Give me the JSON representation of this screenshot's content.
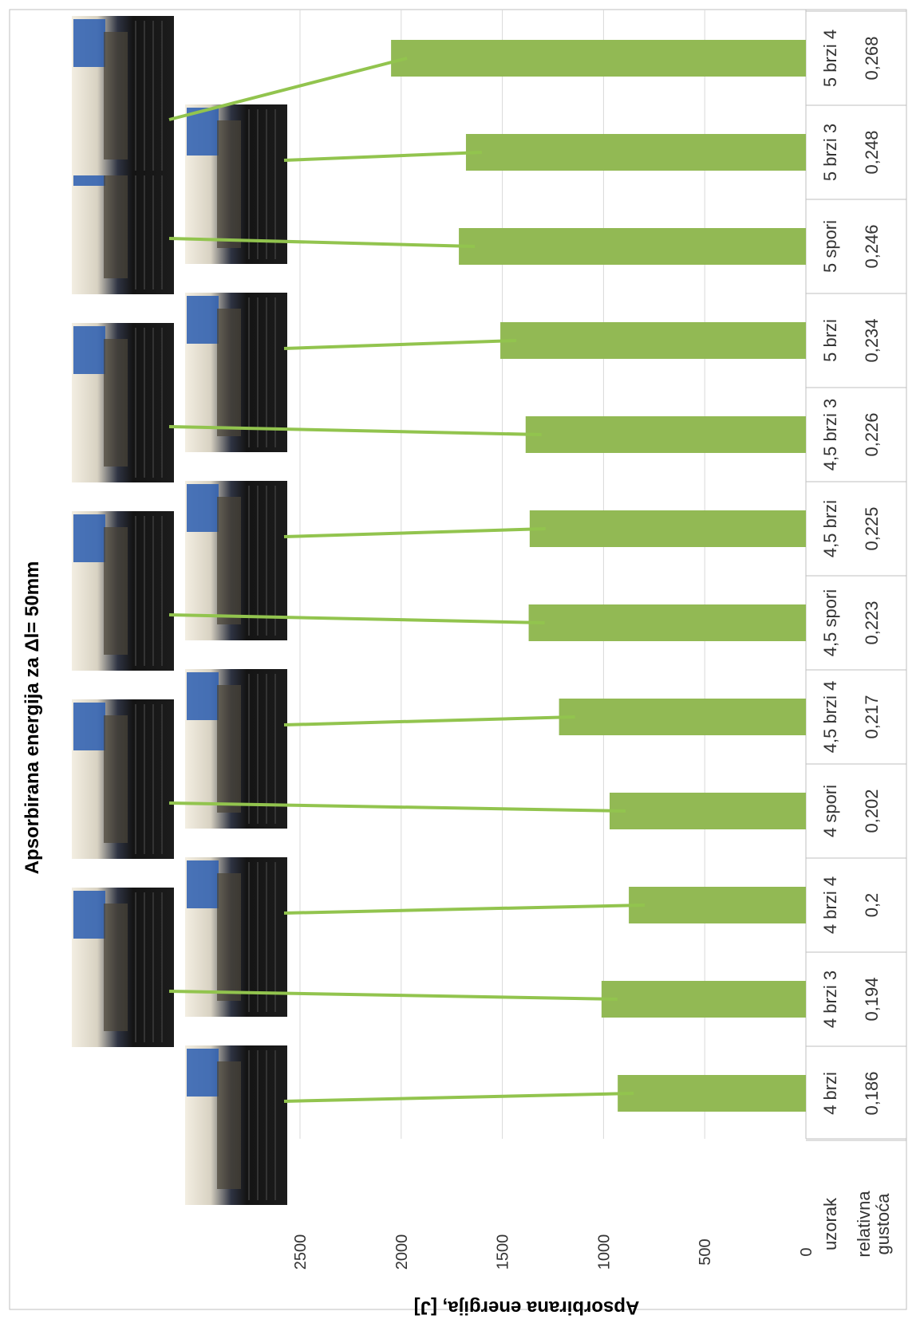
{
  "chart_data": {
    "type": "bar",
    "orientation": "horizontal",
    "rotated": true,
    "title": "Apsorbirana energija za  Δl= 50mm",
    "ylabel": "Apsorbirana energija, [J]",
    "ylim": [
      0,
      2500
    ],
    "yticks": [
      0,
      500,
      1000,
      1500,
      2000,
      2500
    ],
    "grid": true,
    "legend": "none",
    "bar_color": "#92b954",
    "leader_color": "#92c44e",
    "table_row_headers": [
      "uzorak",
      "relativna gustoća"
    ],
    "categories": [
      "4 brzi",
      "4 brzi 3",
      "4 brzi 4",
      "4 spori",
      "4,5 brzi 4",
      "4,5 spori",
      "4,5 brzi",
      "4,5 brzi 3",
      "5 brzi",
      "5 spori",
      "5 brzi 3",
      "5 brzi 4"
    ],
    "relative_density": [
      "0,186",
      "0,194",
      "0,2",
      "0,202",
      "0,217",
      "0,223",
      "0,225",
      "0,226",
      "0,234",
      "0,246",
      "0,248",
      "0,268"
    ],
    "values": [
      930,
      1010,
      875,
      970,
      1220,
      1370,
      1365,
      1385,
      1510,
      1715,
      1680,
      2050
    ],
    "photos": "sample photographs of crushed specimens, one per category"
  }
}
